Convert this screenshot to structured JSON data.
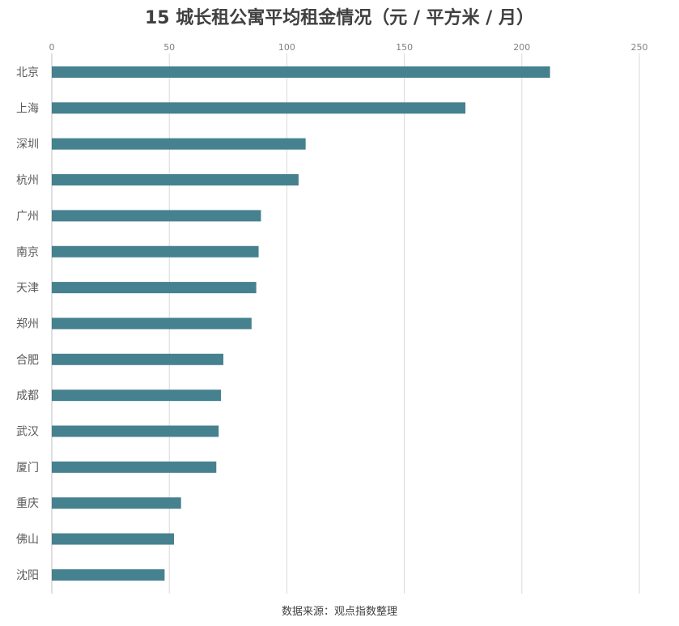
{
  "chart_data": {
    "type": "bar",
    "orientation": "horizontal",
    "title": "15 城长租公寓平均租金情况（元 / 平方米 / 月）",
    "categories": [
      "北京",
      "上海",
      "深圳",
      "杭州",
      "广州",
      "南京",
      "天津",
      "郑州",
      "合肥",
      "成都",
      "武汉",
      "厦门",
      "重庆",
      "佛山",
      "沈阳"
    ],
    "values": [
      212,
      176,
      108,
      105,
      89,
      88,
      87,
      85,
      73,
      72,
      71,
      70,
      55,
      52,
      48
    ],
    "xlim": [
      0,
      250
    ],
    "xticks": [
      0,
      50,
      100,
      150,
      200,
      250
    ],
    "grid": true,
    "bar_color": "#46818f",
    "xaxis_position": "top",
    "source": "数据来源：观点指数整理"
  }
}
